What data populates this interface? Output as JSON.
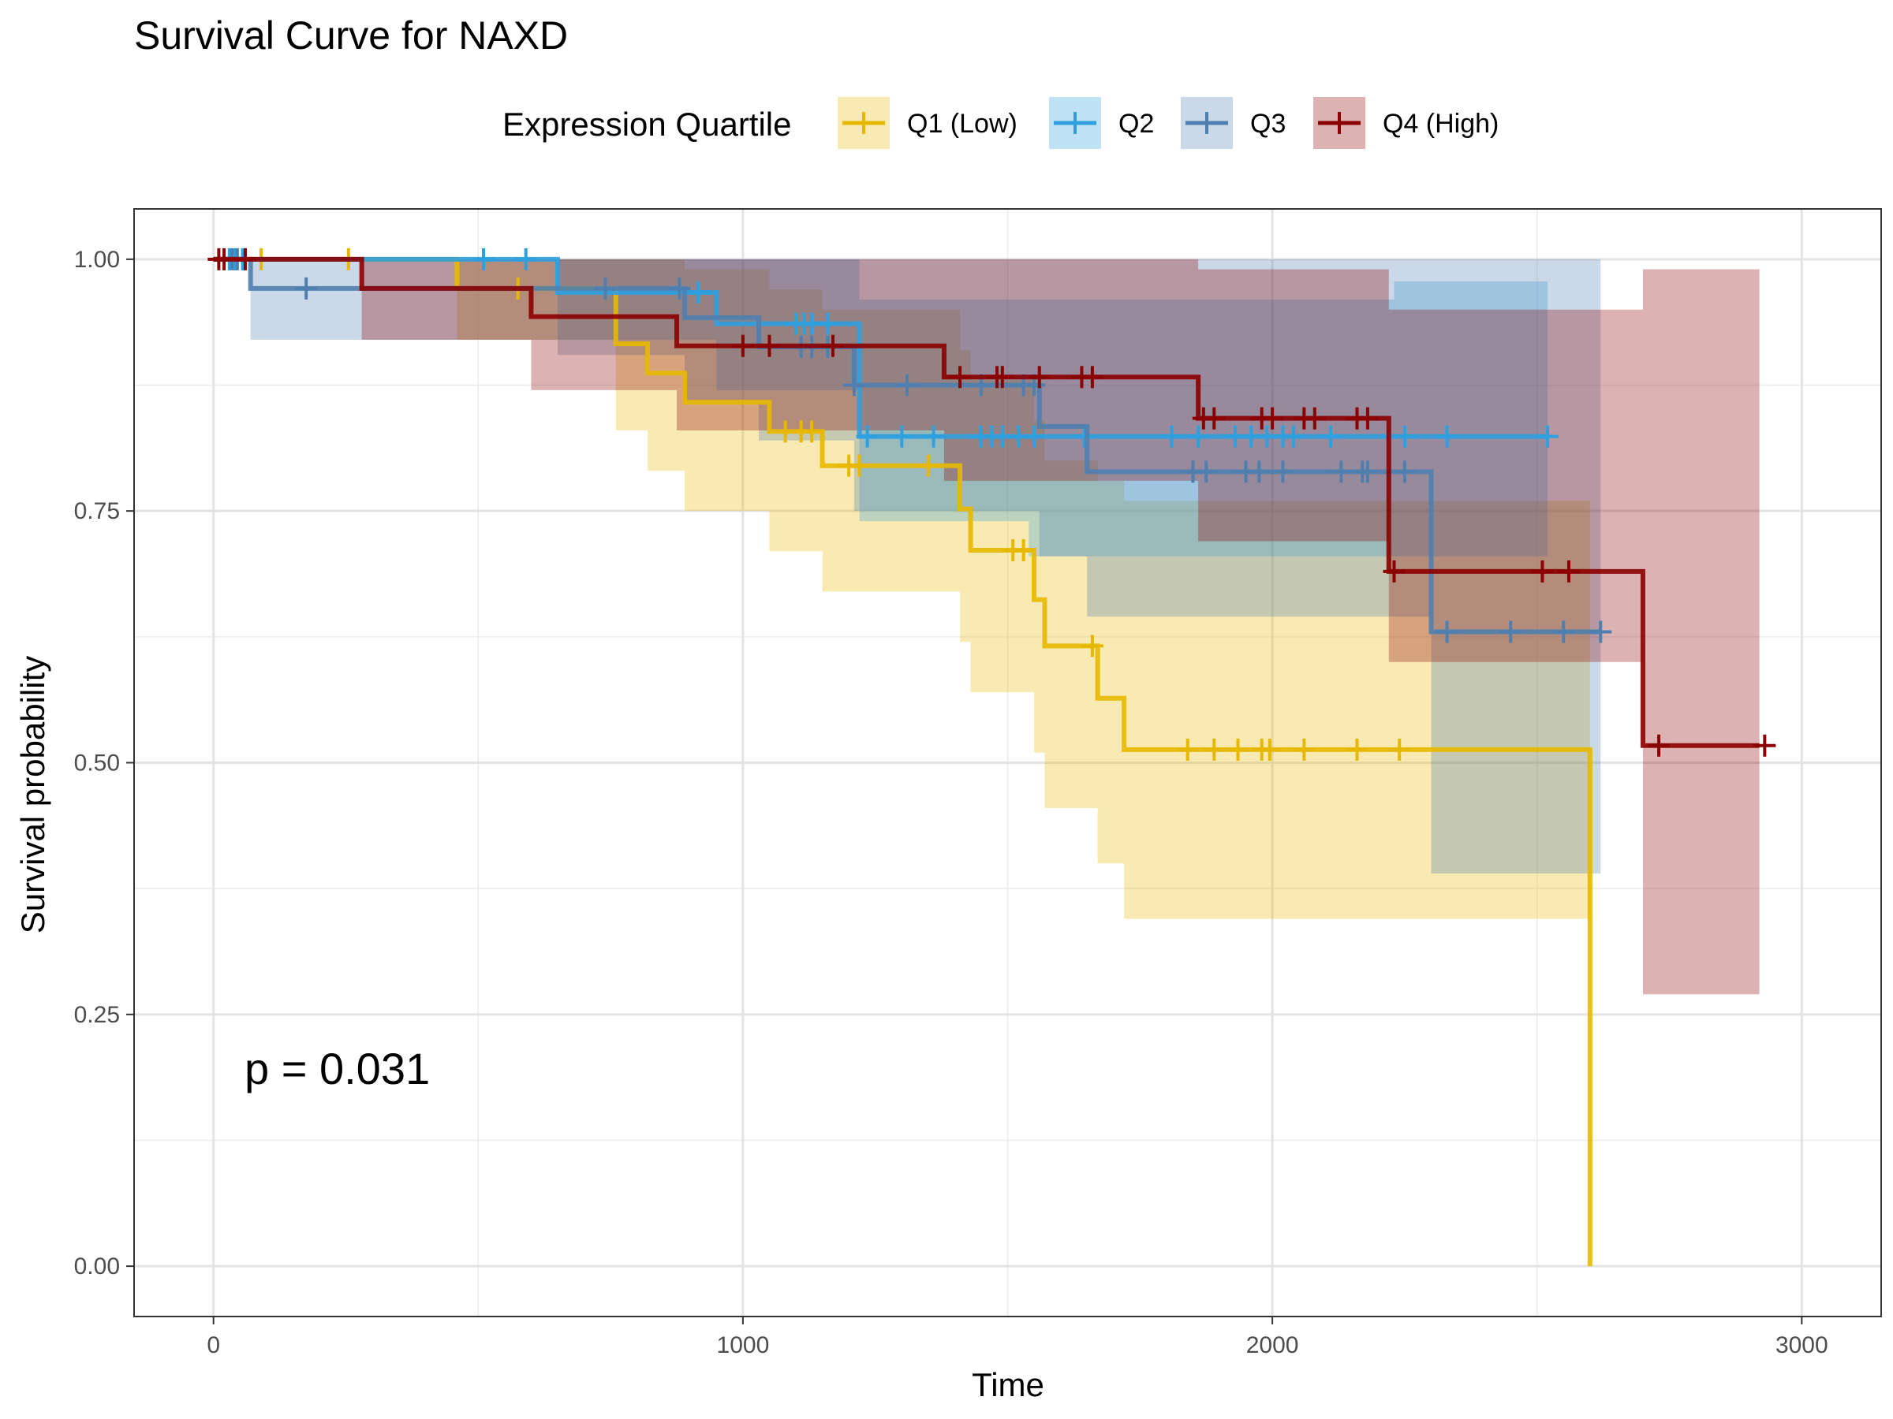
{
  "chart_data": {
    "type": "line",
    "subtype": "kaplan-meier step",
    "title": "Survival Curve for NAXD",
    "xlabel": "Time",
    "ylabel": "Survival probability",
    "xlim": [
      -150,
      3150
    ],
    "ylim": [
      -0.05,
      1.05
    ],
    "x_ticks": [
      0,
      1000,
      2000,
      3000
    ],
    "x_tick_labels": [
      "0",
      "1000",
      "2000",
      "3000"
    ],
    "y_ticks": [
      0,
      0.25,
      0.5,
      0.75,
      1.0
    ],
    "y_tick_labels": [
      "0.00",
      "0.25",
      "0.50",
      "0.75",
      "1.00"
    ],
    "grid": true,
    "legend": {
      "title": "Expression Quartile",
      "position": "top"
    },
    "annotation": "p = 0.031",
    "series": [
      {
        "name": "Q1 (Low)",
        "color": "#E7B800",
        "steps": [
          [
            0,
            1.0
          ],
          [
            460,
            0.971
          ],
          [
            760,
            0.916
          ],
          [
            820,
            0.887
          ],
          [
            890,
            0.858
          ],
          [
            1050,
            0.829
          ],
          [
            1150,
            0.795
          ],
          [
            1410,
            0.752
          ],
          [
            1430,
            0.711
          ],
          [
            1550,
            0.662
          ],
          [
            1570,
            0.616
          ],
          [
            1670,
            0.564
          ],
          [
            1720,
            0.513
          ],
          [
            2600,
            0.0
          ]
        ],
        "lower": [
          [
            0,
            1.0
          ],
          [
            460,
            0.92
          ],
          [
            760,
            0.83
          ],
          [
            820,
            0.79
          ],
          [
            890,
            0.75
          ],
          [
            1050,
            0.71
          ],
          [
            1150,
            0.67
          ],
          [
            1410,
            0.62
          ],
          [
            1430,
            0.57
          ],
          [
            1550,
            0.51
          ],
          [
            1570,
            0.455
          ],
          [
            1670,
            0.4
          ],
          [
            1720,
            0.345
          ],
          [
            2600,
            0.345
          ]
        ],
        "upper": [
          [
            0,
            1.0
          ],
          [
            460,
            1.0
          ],
          [
            760,
            1.0
          ],
          [
            820,
            1.0
          ],
          [
            890,
            0.99
          ],
          [
            1050,
            0.97
          ],
          [
            1150,
            0.95
          ],
          [
            1410,
            0.91
          ],
          [
            1430,
            0.88
          ],
          [
            1550,
            0.84
          ],
          [
            1570,
            0.8
          ],
          [
            1670,
            0.78
          ],
          [
            1720,
            0.76
          ],
          [
            2600,
            0.76
          ]
        ],
        "censor_x": [
          90,
          255,
          575,
          1080,
          1110,
          1130,
          1200,
          1220,
          1350,
          1510,
          1530,
          1660,
          1840,
          1890,
          1935,
          1980,
          1995,
          2060,
          2160,
          2240
        ]
      },
      {
        "name": "Q2",
        "color": "#2E9FDF",
        "steps": [
          [
            0,
            1.0
          ],
          [
            650,
            0.967
          ],
          [
            950,
            0.936
          ],
          [
            1220,
            0.824
          ],
          [
            2520,
            0.824
          ]
        ],
        "lower": [
          [
            0,
            1.0
          ],
          [
            650,
            0.92
          ],
          [
            950,
            0.87
          ],
          [
            1220,
            0.74
          ],
          [
            1540,
            0.705
          ],
          [
            2520,
            0.705
          ]
        ],
        "upper": [
          [
            0,
            1.0
          ],
          [
            650,
            1.0
          ],
          [
            950,
            1.0
          ],
          [
            1220,
            0.96
          ],
          [
            2230,
            0.978
          ],
          [
            2520,
            0.978
          ]
        ],
        "censor_x": [
          30,
          40,
          55,
          510,
          590,
          915,
          1100,
          1115,
          1130,
          1160,
          1235,
          1300,
          1360,
          1450,
          1470,
          1490,
          1520,
          1550,
          1645,
          1810,
          1860,
          1930,
          1960,
          1990,
          2020,
          2040,
          2110,
          2250,
          2330,
          2520
        ]
      },
      {
        "name": "Q3",
        "color": "#4F7FAF",
        "steps": [
          [
            0,
            1.0
          ],
          [
            70,
            0.971
          ],
          [
            650,
            0.971
          ],
          [
            890,
            0.942
          ],
          [
            1030,
            0.913
          ],
          [
            1210,
            0.875
          ],
          [
            1560,
            0.834
          ],
          [
            1650,
            0.789
          ],
          [
            2300,
            0.63
          ],
          [
            2620,
            0.63
          ]
        ],
        "lower": [
          [
            0,
            1.0
          ],
          [
            70,
            0.92
          ],
          [
            650,
            0.905
          ],
          [
            890,
            0.86
          ],
          [
            1030,
            0.82
          ],
          [
            1210,
            0.75
          ],
          [
            1560,
            0.705
          ],
          [
            1650,
            0.645
          ],
          [
            2300,
            0.39
          ],
          [
            2620,
            0.39
          ]
        ],
        "upper": [
          [
            0,
            1.0
          ],
          [
            2230,
            1.0
          ],
          [
            2300,
            1.0
          ],
          [
            2620,
            1.0
          ]
        ],
        "censor_x": [
          35,
          45,
          175,
          740,
          880,
          1110,
          1130,
          1160,
          1210,
          1310,
          1450,
          1530,
          1550,
          1850,
          1875,
          1950,
          1975,
          2020,
          2130,
          2170,
          2180,
          2250,
          2330,
          2450,
          2550,
          2620
        ]
      },
      {
        "name": "Q4 (High)",
        "color": "#8B0000",
        "steps": [
          [
            0,
            1.0
          ],
          [
            280,
            0.971
          ],
          [
            600,
            0.943
          ],
          [
            875,
            0.914
          ],
          [
            1380,
            0.883
          ],
          [
            1860,
            0.842
          ],
          [
            2220,
            0.69
          ],
          [
            2700,
            0.517
          ],
          [
            2920,
            0.517
          ]
        ],
        "lower": [
          [
            0,
            1.0
          ],
          [
            280,
            0.92
          ],
          [
            600,
            0.87
          ],
          [
            875,
            0.83
          ],
          [
            1380,
            0.78
          ],
          [
            1860,
            0.72
          ],
          [
            2220,
            0.6
          ],
          [
            2700,
            0.27
          ],
          [
            2920,
            0.27
          ]
        ],
        "upper": [
          [
            0,
            1.0
          ],
          [
            280,
            1.0
          ],
          [
            1860,
            0.99
          ],
          [
            2220,
            0.95
          ],
          [
            2700,
            0.99
          ],
          [
            2920,
            0.99
          ]
        ],
        "censor_x": [
          10,
          20,
          60,
          1000,
          1050,
          1170,
          1410,
          1480,
          1490,
          1560,
          1640,
          1660,
          1870,
          1890,
          1980,
          2000,
          2060,
          2080,
          2160,
          2180,
          2230,
          2510,
          2560,
          2730,
          2930
        ]
      }
    ]
  }
}
